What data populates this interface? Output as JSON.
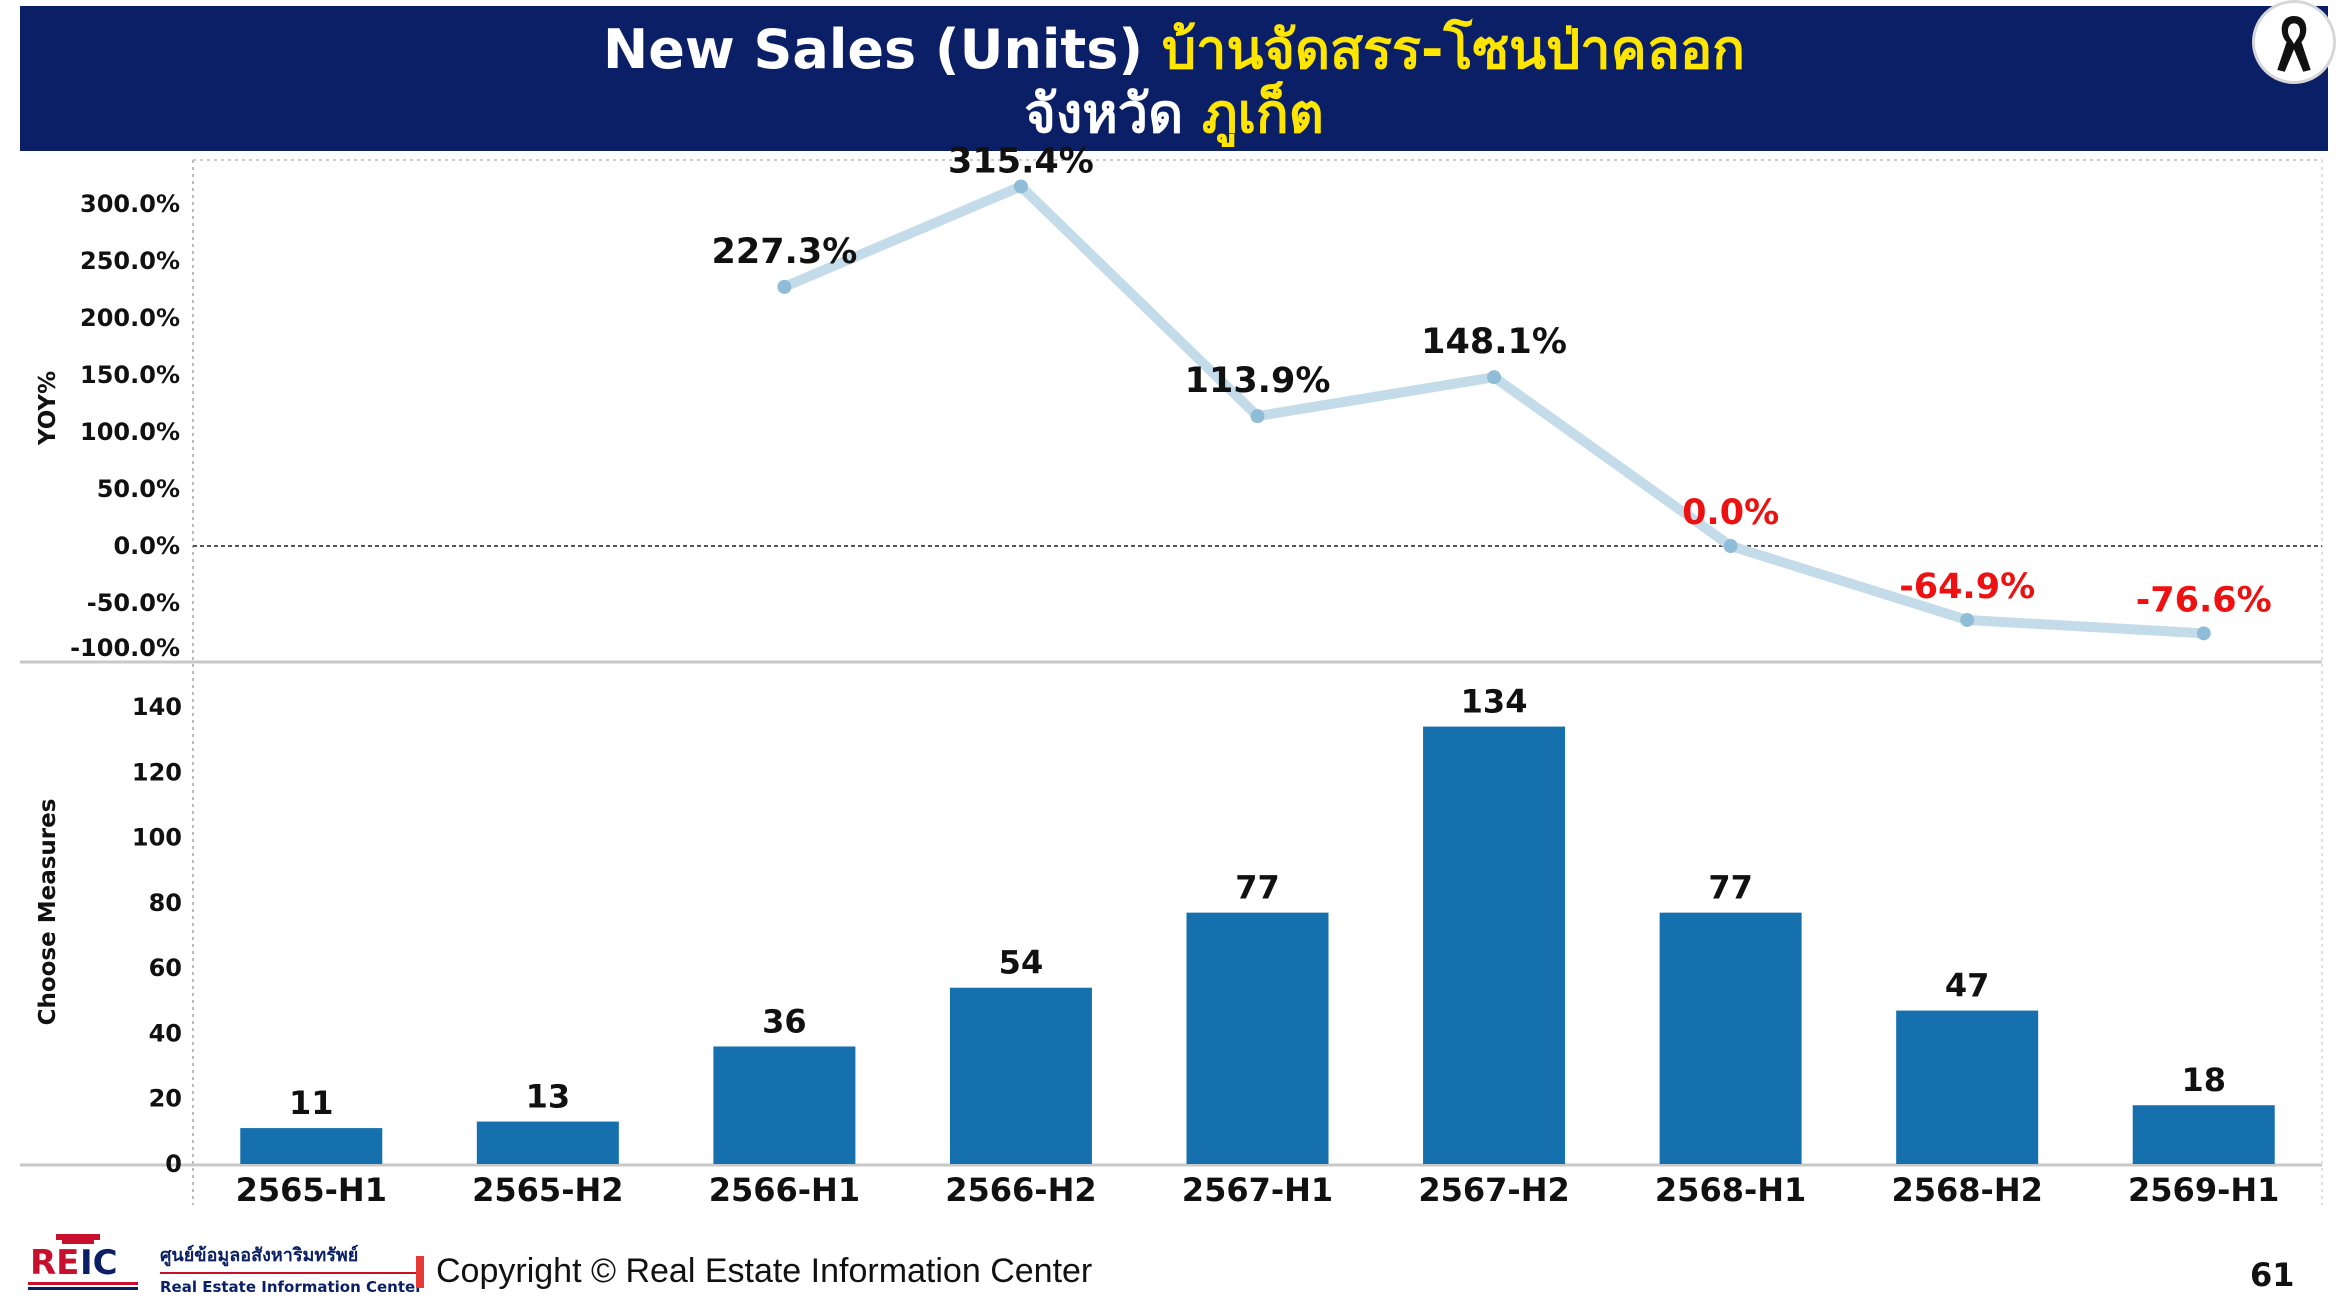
{
  "slide": {
    "title_part1": "New Sales (Units) ",
    "title_part2": "บ้านจัดสรร-โซนป่าคลอก",
    "title_part3": "จังหวัด ",
    "title_part4": "ภูเก็ต",
    "page_number": "61"
  },
  "footer": {
    "logo_text": "REIC",
    "org_name_th": "ศูนย์ข้อมูลอสังหาริมทรัพย์",
    "org_name_en": "Real Estate Information Center",
    "copyright": "Copyright © Real Estate Information Center"
  },
  "colors": {
    "banner": "#0b1f66",
    "title_accent": "#ffe600",
    "bar": "#1570ad",
    "line": "#c4dcea",
    "line_point": "#8fbcd6",
    "negative_label": "#ee1111",
    "label": "#111111"
  },
  "chart_data": [
    {
      "type": "line",
      "title": "",
      "xlabel": "",
      "ylabel": "YOY%",
      "ylim": [
        -100,
        300
      ],
      "yticks": [
        "300.0%",
        "250.0%",
        "200.0%",
        "150.0%",
        "100.0%",
        "50.0%",
        "0.0%",
        "-50.0%",
        "-100.0%"
      ],
      "ytick_values": [
        300,
        250,
        200,
        150,
        100,
        50,
        0,
        -50,
        -100
      ],
      "zero_reference_line": "dashed",
      "categories": [
        "2565-H1",
        "2565-H2",
        "2566-H1",
        "2566-H2",
        "2567-H1",
        "2567-H2",
        "2568-H1",
        "2568-H2",
        "2569-H1"
      ],
      "values": [
        null,
        null,
        227.3,
        315.4,
        113.9,
        148.1,
        0.0,
        -64.9,
        -76.6
      ],
      "labels": [
        "",
        "",
        "227.3%",
        "315.4%",
        "113.9%",
        "148.1%",
        "0.0%",
        "-64.9%",
        "-76.6%"
      ]
    },
    {
      "type": "bar",
      "title": "",
      "xlabel": "",
      "ylabel": "Choose Measures",
      "ylim": [
        0,
        140
      ],
      "yticks": [
        "140",
        "120",
        "100",
        "80",
        "60",
        "40",
        "20",
        "0"
      ],
      "ytick_values": [
        140,
        120,
        100,
        80,
        60,
        40,
        20,
        0
      ],
      "categories": [
        "2565-H1",
        "2565-H2",
        "2566-H1",
        "2566-H2",
        "2567-H1",
        "2567-H2",
        "2568-H1",
        "2568-H2",
        "2569-H1"
      ],
      "values": [
        11,
        13,
        36,
        54,
        77,
        134,
        77,
        47,
        18
      ],
      "labels": [
        "11",
        "13",
        "36",
        "54",
        "77",
        "134",
        "77",
        "47",
        "18"
      ]
    }
  ]
}
